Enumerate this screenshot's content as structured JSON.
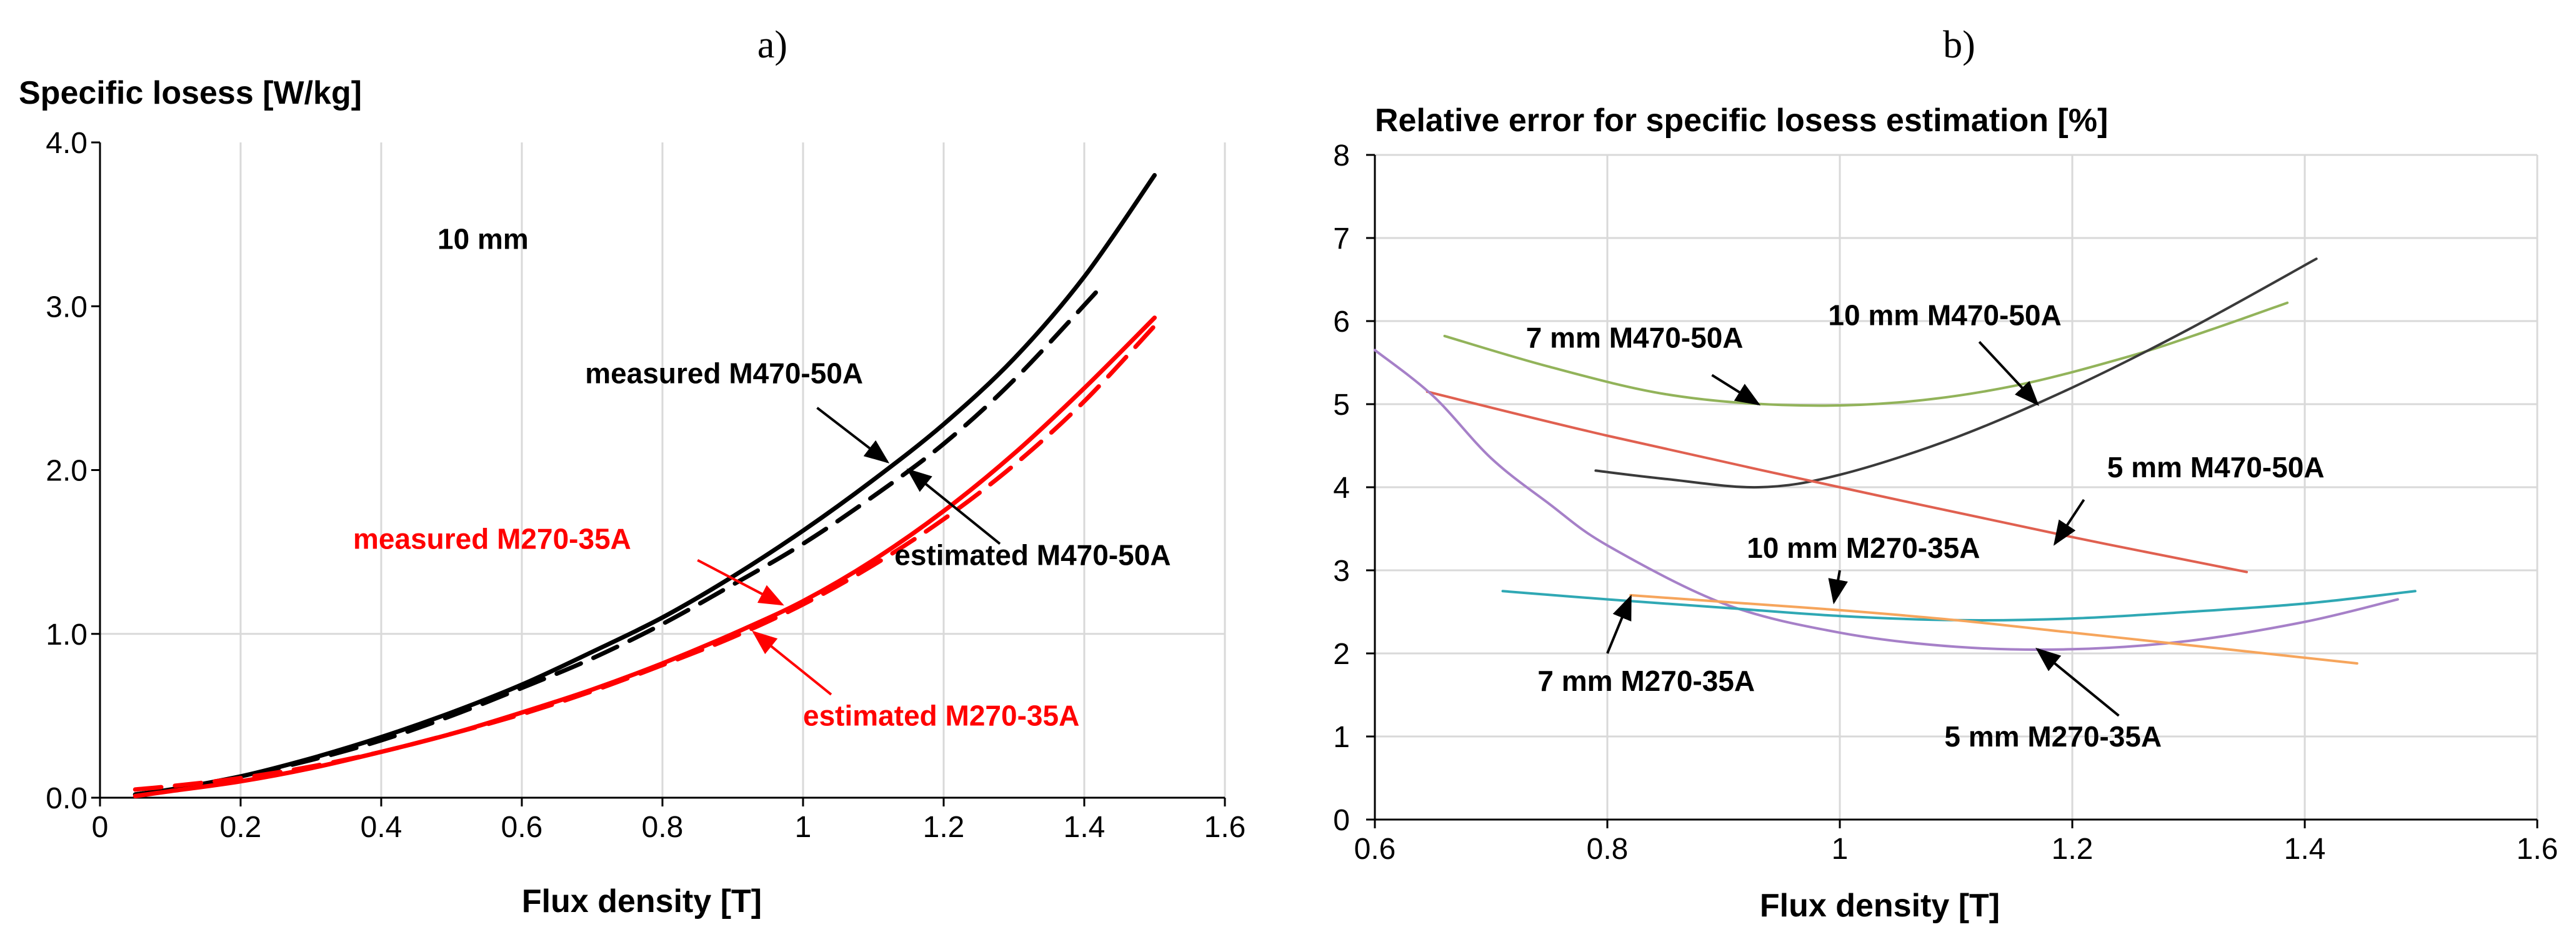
{
  "colors": {
    "black": "#000000",
    "red": "#ff0000",
    "green": "#92b35a",
    "dark": "#3a3a3a",
    "salmon": "#e06050",
    "purple": "#a680c8",
    "teal": "#2fa8b4",
    "orange": "#f6a55c",
    "grid": "#d9d9d9"
  },
  "chart_data": [
    {
      "panel": "a)",
      "type": "line",
      "title": "Specific losess [W/kg]",
      "xlabel": "Flux density [T]",
      "ylabel": "Specific losess [W/kg]",
      "xlim": [
        0,
        1.6
      ],
      "ylim": [
        0,
        4.0
      ],
      "xticks": [
        "0",
        "0.2",
        "0.4",
        "0.6",
        "0.8",
        "1",
        "1.2",
        "1.4",
        "1.6"
      ],
      "xtick_values": [
        0,
        0.2,
        0.4,
        0.6,
        0.8,
        1.0,
        1.2,
        1.4,
        1.6
      ],
      "yticks": [
        "0.0",
        "1.0",
        "2.0",
        "3.0",
        "4.0"
      ],
      "ytick_values": [
        0,
        1,
        2,
        3,
        4
      ],
      "grid": "vertical",
      "series": [
        {
          "name": "measured M470-50A",
          "color": "black",
          "dash": "solid",
          "x": [
            0.05,
            0.1,
            0.2,
            0.3,
            0.4,
            0.5,
            0.6,
            0.7,
            0.8,
            0.9,
            1.0,
            1.1,
            1.2,
            1.3,
            1.4,
            1.5
          ],
          "y": [
            0.02,
            0.05,
            0.13,
            0.24,
            0.37,
            0.52,
            0.69,
            0.89,
            1.1,
            1.35,
            1.63,
            1.94,
            2.28,
            2.68,
            3.18,
            3.8
          ]
        },
        {
          "name": "estimated M470-50A",
          "color": "black",
          "dash": "dashed",
          "x": [
            0.05,
            0.1,
            0.2,
            0.3,
            0.4,
            0.5,
            0.6,
            0.7,
            0.8,
            0.9,
            1.0,
            1.1,
            1.2,
            1.3,
            1.42
          ],
          "y": [
            0.02,
            0.05,
            0.13,
            0.23,
            0.35,
            0.5,
            0.67,
            0.85,
            1.06,
            1.3,
            1.55,
            1.84,
            2.16,
            2.55,
            3.1
          ]
        },
        {
          "name": "measured M270-35A",
          "color": "red",
          "dash": "solid",
          "x": [
            0.05,
            0.1,
            0.2,
            0.3,
            0.4,
            0.5,
            0.6,
            0.7,
            0.8,
            0.9,
            1.0,
            1.1,
            1.2,
            1.3,
            1.4,
            1.5
          ],
          "y": [
            0.01,
            0.04,
            0.1,
            0.18,
            0.28,
            0.39,
            0.52,
            0.66,
            0.82,
            1.0,
            1.2,
            1.45,
            1.75,
            2.1,
            2.5,
            2.93
          ]
        },
        {
          "name": "estimated M270-35A",
          "color": "red",
          "dash": "dashed",
          "x": [
            0.05,
            0.1,
            0.2,
            0.3,
            0.4,
            0.5,
            0.6,
            0.7,
            0.8,
            0.9,
            1.0,
            1.1,
            1.2,
            1.3,
            1.4,
            1.5
          ],
          "y": [
            0.05,
            0.07,
            0.12,
            0.19,
            0.28,
            0.39,
            0.51,
            0.65,
            0.81,
            0.98,
            1.18,
            1.42,
            1.7,
            2.03,
            2.42,
            2.88
          ]
        }
      ],
      "annotations": [
        {
          "text": "10 mm",
          "x": 0.48,
          "y": 3.35,
          "color": "black",
          "anchor": "start"
        },
        {
          "text": "measured M470-50A",
          "x": 0.69,
          "y": 2.53,
          "color": "black",
          "anchor": "start",
          "arrow_from": [
            1.02,
            2.38
          ],
          "arrow_to": [
            1.12,
            2.05
          ]
        },
        {
          "text": "estimated M470-50A",
          "x": 1.13,
          "y": 1.42,
          "color": "black",
          "anchor": "start",
          "arrow_from": [
            1.28,
            1.55
          ],
          "arrow_to": [
            1.15,
            2.0
          ]
        },
        {
          "text": "measured M270-35A",
          "x": 0.36,
          "y": 1.52,
          "color": "red",
          "anchor": "start",
          "arrow_from": [
            0.85,
            1.45
          ],
          "arrow_to": [
            0.97,
            1.18
          ]
        },
        {
          "text": "estimated M270-35A",
          "x": 1.0,
          "y": 0.44,
          "color": "red",
          "anchor": "start",
          "arrow_from": [
            1.04,
            0.63
          ],
          "arrow_to": [
            0.93,
            1.01
          ]
        }
      ]
    },
    {
      "panel": "b)",
      "type": "line",
      "title": "Relative error for specific losess estimation [%]",
      "xlabel": "Flux density [T]",
      "ylabel": "Relative error for specific losess estimation [%]",
      "xlim": [
        0.6,
        1.6
      ],
      "ylim": [
        0,
        8
      ],
      "xticks": [
        "0.6",
        "0.8",
        "1",
        "1.2",
        "1.4",
        "1.6"
      ],
      "xtick_values": [
        0.6,
        0.8,
        1.0,
        1.2,
        1.4,
        1.6
      ],
      "yticks": [
        "0",
        "1",
        "2",
        "3",
        "4",
        "5",
        "6",
        "7",
        "8"
      ],
      "ytick_values": [
        0,
        1,
        2,
        3,
        4,
        5,
        6,
        7,
        8
      ],
      "grid": "both",
      "series": [
        {
          "name": "7 mm M470-50A",
          "color": "green",
          "x": [
            0.66,
            0.75,
            0.85,
            0.95,
            1.05,
            1.15,
            1.25,
            1.32,
            1.385
          ],
          "y": [
            5.82,
            5.45,
            5.12,
            4.99,
            5.02,
            5.22,
            5.58,
            5.9,
            6.22
          ]
        },
        {
          "name": "10 mm M470-50A",
          "color": "dark",
          "x": [
            0.79,
            0.85,
            0.93,
            1.0,
            1.1,
            1.2,
            1.3,
            1.41
          ],
          "y": [
            4.2,
            4.1,
            4.0,
            4.15,
            4.6,
            5.2,
            5.9,
            6.75
          ]
        },
        {
          "name": "5 mm M470-50A",
          "color": "salmon",
          "x": [
            0.645,
            0.8,
            1.0,
            1.2,
            1.35
          ],
          "y": [
            5.15,
            4.62,
            4.0,
            3.4,
            2.98
          ]
        },
        {
          "name": "5 mm M270-35A",
          "color": "purple",
          "x": [
            0.6,
            0.65,
            0.7,
            0.75,
            0.8,
            0.9,
            1.0,
            1.1,
            1.2,
            1.3,
            1.4,
            1.48
          ],
          "y": [
            5.65,
            5.1,
            4.35,
            3.8,
            3.3,
            2.6,
            2.25,
            2.08,
            2.05,
            2.15,
            2.38,
            2.65
          ]
        },
        {
          "name": "7 mm M270-35A",
          "color": "teal",
          "x": [
            0.71,
            0.8,
            0.9,
            1.0,
            1.1,
            1.2,
            1.3,
            1.4,
            1.495
          ],
          "y": [
            2.75,
            2.65,
            2.55,
            2.45,
            2.4,
            2.42,
            2.5,
            2.6,
            2.75
          ]
        },
        {
          "name": "10 mm M270-35A",
          "color": "orange",
          "x": [
            0.82,
            0.9,
            1.0,
            1.1,
            1.2,
            1.3,
            1.445
          ],
          "y": [
            2.7,
            2.62,
            2.52,
            2.4,
            2.25,
            2.1,
            1.88
          ]
        }
      ],
      "annotations": [
        {
          "text": "7 mm M470-50A",
          "x": 0.73,
          "y": 5.68,
          "color": "black",
          "anchor": "start",
          "arrow_from": [
            0.89,
            5.35
          ],
          "arrow_to": [
            0.93,
            5.0
          ]
        },
        {
          "text": "10 mm M470-50A",
          "x": 0.99,
          "y": 5.95,
          "color": "black",
          "anchor": "start",
          "arrow_from": [
            1.12,
            5.75
          ],
          "arrow_to": [
            1.17,
            5.0
          ]
        },
        {
          "text": "5 mm M470-50A",
          "x": 1.23,
          "y": 4.12,
          "color": "black",
          "anchor": "start",
          "arrow_from": [
            1.21,
            3.85
          ],
          "arrow_to": [
            1.185,
            3.32
          ]
        },
        {
          "text": "10 mm M270-35A",
          "x": 0.92,
          "y": 3.15,
          "color": "black",
          "anchor": "start",
          "arrow_from": [
            1.0,
            3.0
          ],
          "arrow_to": [
            0.995,
            2.62
          ]
        },
        {
          "text": "7 mm M270-35A",
          "x": 0.74,
          "y": 1.55,
          "color": "black",
          "anchor": "start",
          "arrow_from": [
            0.8,
            2.0
          ],
          "arrow_to": [
            0.82,
            2.68
          ]
        },
        {
          "text": "5 mm M270-35A",
          "x": 1.09,
          "y": 0.88,
          "color": "black",
          "anchor": "start",
          "arrow_from": [
            1.24,
            1.25
          ],
          "arrow_to": [
            1.17,
            2.05
          ]
        }
      ]
    }
  ]
}
